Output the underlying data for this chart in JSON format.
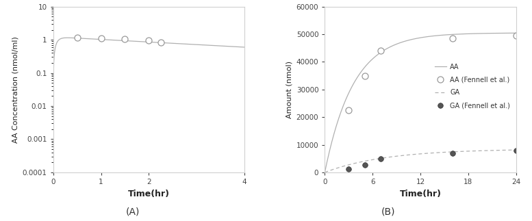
{
  "panel_A": {
    "ylabel": "AA Concentration (nmol/ml)",
    "xlabel": "Time(hr)",
    "label": "(A)",
    "xlim": [
      0,
      4
    ],
    "ylim": [
      0.0001,
      10
    ],
    "xticks": [
      0,
      1,
      2,
      4
    ],
    "yticks": [
      0.0001,
      0.001,
      0.01,
      0.1,
      1,
      10
    ],
    "line_color": "#b0b0b0",
    "obs_x": [
      0.5,
      1.0,
      1.5,
      2.0,
      2.25
    ],
    "obs_y": [
      1.15,
      1.1,
      1.05,
      0.98,
      0.84
    ],
    "ka": 15.0,
    "ke": 0.18,
    "dose_scale": 1.22
  },
  "panel_B": {
    "ylabel": "Amount (nmol)",
    "xlabel": "Time(hr)",
    "label": "(B)",
    "xlim": [
      0,
      24
    ],
    "ylim": [
      0,
      60000
    ],
    "xticks": [
      0,
      6,
      12,
      18,
      24
    ],
    "yticks": [
      0,
      10000,
      20000,
      30000,
      40000,
      50000,
      60000
    ],
    "ytick_labels": [
      "0",
      "10000",
      "20000",
      "30000",
      "40000",
      "50000",
      "60000"
    ],
    "line_color": "#b0b0b0",
    "AA_obs_x": [
      3,
      5,
      7,
      16,
      24
    ],
    "AA_obs_y": [
      22500,
      35000,
      44000,
      48500,
      49500
    ],
    "GA_obs_x": [
      3,
      5,
      7,
      16,
      24
    ],
    "GA_obs_y": [
      1200,
      2600,
      5000,
      7000,
      8000
    ],
    "k_AA": 0.28,
    "AA_max": 50500,
    "k_GA": 0.13,
    "GA_max": 8500,
    "legend_labels": [
      "AA",
      "AA (Fennell et al.)",
      "GA",
      "GA (Fennell et al.)"
    ]
  },
  "figure_bg": "#ffffff",
  "spine_color": "#d0d0d0",
  "tick_label_color": "#444444",
  "axis_label_color": "#222222"
}
